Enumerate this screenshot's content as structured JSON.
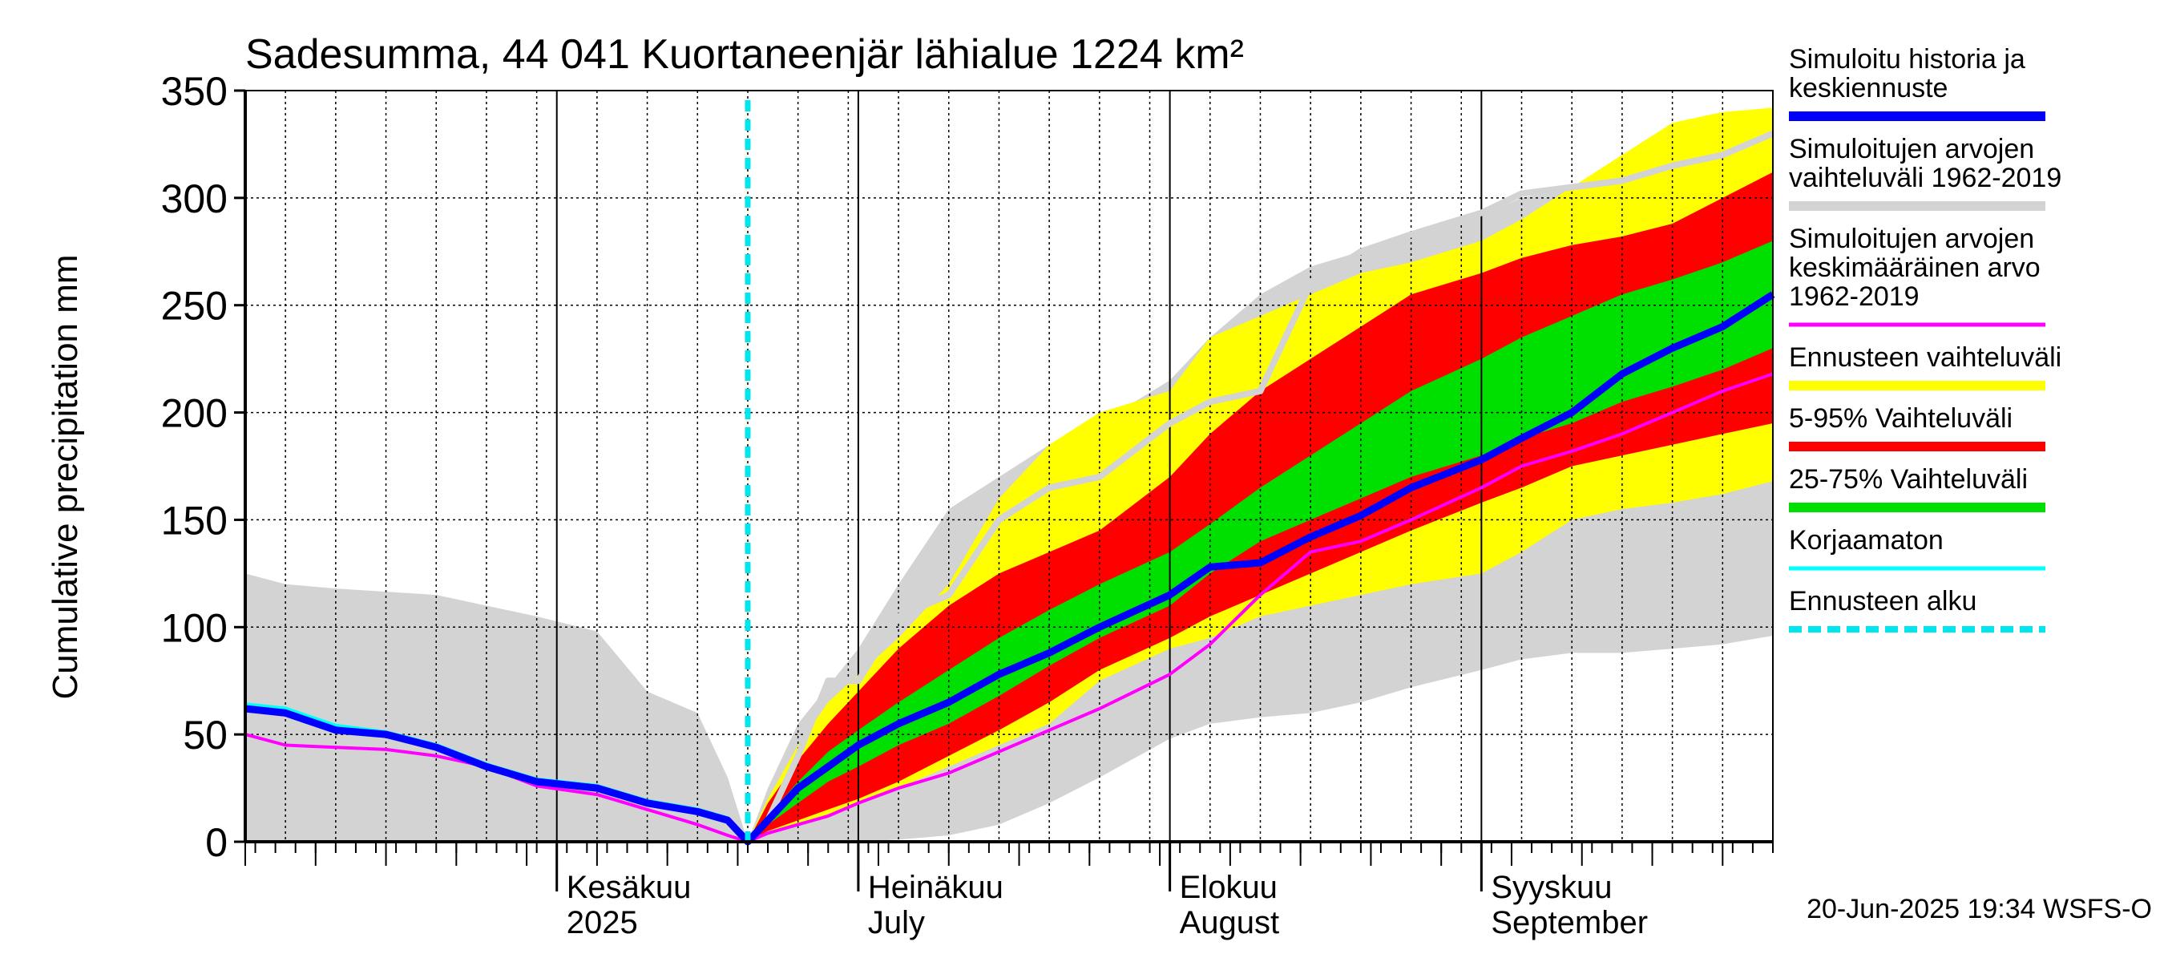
{
  "chart_data": {
    "type": "area",
    "title": "Sadesumma, 44 041 Kuortaneenjär lähialue 1224 km²",
    "ylabel": "Cumulative precipitation   mm",
    "xlabel": "",
    "ylim": [
      0,
      350
    ],
    "yticks": [
      0,
      50,
      100,
      150,
      200,
      250,
      300,
      350
    ],
    "xlim": [
      "2025-05-01",
      "2025-09-30"
    ],
    "forecast_start": "2025-06-20",
    "grid": true,
    "legend_position": "right",
    "footer": "20-Jun-2025 19:34 WSFS-O",
    "month_labels": [
      {
        "date": "2025-06-01",
        "line1": "Kesäkuu",
        "line2": "2025"
      },
      {
        "date": "2025-07-01",
        "line1": "Heinäkuu",
        "line2": "July"
      },
      {
        "date": "2025-08-01",
        "line1": "Elokuu",
        "line2": "August"
      },
      {
        "date": "2025-09-01",
        "line1": "Syyskuu",
        "line2": "September"
      }
    ],
    "colors": {
      "gray_band": "#d3d3d3",
      "yellow_band": "#ffff00",
      "red_band": "#ff0000",
      "green_band": "#00e000",
      "blue_line": "#0000ff",
      "gray_line": "#d3d3d3",
      "magenta_line": "#ff00ff",
      "cyan_line": "#00ffff",
      "forecast_start_line": "#00e5ee"
    },
    "legend": [
      {
        "label": "Simuloitu historia ja keskiennuste",
        "lines": [
          "Simuloitu historia ja",
          "keskiennuste"
        ],
        "color": "#0000ff",
        "style": "solid-thick"
      },
      {
        "label": "Simuloitujen arvojen vaihteluväli 1962-2019",
        "lines": [
          "Simuloitujen arvojen",
          "vaihteluväli 1962-2019"
        ],
        "color": "#d3d3d3",
        "style": "solid-thick"
      },
      {
        "label": "Simuloitujen arvojen keskimääräinen arvo 1962-2019",
        "lines": [
          "Simuloitujen arvojen",
          "keskimääräinen arvo",
          "   1962-2019"
        ],
        "color": "#ff00ff",
        "style": "solid"
      },
      {
        "label": "Ennusteen vaihteluväli",
        "lines": [
          "Ennusteen vaihteluväli"
        ],
        "color": "#ffff00",
        "style": "solid-thick"
      },
      {
        "label": "5-95% Vaihteluväli",
        "lines": [
          "5-95% Vaihteluväli"
        ],
        "color": "#ff0000",
        "style": "solid-thick"
      },
      {
        "label": "25-75% Vaihteluväli",
        "lines": [
          "25-75% Vaihteluväli"
        ],
        "color": "#00e000",
        "style": "solid-thick"
      },
      {
        "label": "Korjaamaton",
        "lines": [
          "Korjaamaton"
        ],
        "color": "#00ffff",
        "style": "solid"
      },
      {
        "label": "Ennusteen alku",
        "lines": [
          "Ennusteen alku"
        ],
        "color": "#00e5ee",
        "style": "dashed"
      }
    ],
    "series": [
      {
        "key": "gray_band",
        "type": "band",
        "x": [
          "2025-05-01",
          "2025-05-05",
          "2025-05-10",
          "2025-05-20",
          "2025-05-30",
          "2025-06-05",
          "2025-06-10",
          "2025-06-15",
          "2025-06-18",
          "2025-06-20",
          "2025-06-22",
          "2025-06-25",
          "2025-07-01",
          "2025-07-05",
          "2025-07-10",
          "2025-07-15",
          "2025-07-20",
          "2025-07-25",
          "2025-08-01",
          "2025-08-05",
          "2025-08-10",
          "2025-08-15",
          "2025-08-20",
          "2025-08-25",
          "2025-09-01",
          "2025-09-05",
          "2025-09-10",
          "2025-09-15",
          "2025-09-20",
          "2025-09-25",
          "2025-09-30"
        ],
        "lower": [
          0,
          0,
          0,
          0,
          0,
          0,
          0,
          0,
          0,
          0,
          0,
          0,
          0,
          1,
          3,
          8,
          18,
          30,
          48,
          55,
          58,
          60,
          65,
          72,
          80,
          85,
          88,
          88,
          90,
          92,
          96
        ],
        "upper": [
          125,
          120,
          118,
          115,
          105,
          98,
          70,
          60,
          30,
          0,
          25,
          55,
          90,
          120,
          155,
          170,
          185,
          195,
          215,
          235,
          255,
          268,
          275,
          282,
          292,
          300,
          305,
          310,
          315,
          318,
          326
        ]
      },
      {
        "key": "yellow_band",
        "type": "band",
        "x": [
          "2025-06-20",
          "2025-06-22",
          "2025-06-25",
          "2025-06-28",
          "2025-07-01",
          "2025-07-05",
          "2025-07-10",
          "2025-07-15",
          "2025-07-20",
          "2025-07-25",
          "2025-08-01",
          "2025-08-05",
          "2025-08-10",
          "2025-08-15",
          "2025-08-20",
          "2025-08-25",
          "2025-09-01",
          "2025-09-05",
          "2025-09-10",
          "2025-09-15",
          "2025-09-20",
          "2025-09-25",
          "2025-09-30"
        ],
        "lower": [
          0,
          5,
          8,
          12,
          18,
          25,
          35,
          45,
          55,
          75,
          90,
          95,
          105,
          110,
          115,
          120,
          125,
          135,
          150,
          155,
          158,
          162,
          168
        ],
        "upper": [
          0,
          20,
          45,
          65,
          78,
          95,
          120,
          160,
          185,
          200,
          210,
          235,
          245,
          255,
          265,
          270,
          280,
          290,
          305,
          320,
          335,
          340,
          342
        ]
      },
      {
        "key": "red_band",
        "type": "band",
        "x": [
          "2025-06-20",
          "2025-06-22",
          "2025-06-25",
          "2025-06-28",
          "2025-07-01",
          "2025-07-05",
          "2025-07-10",
          "2025-07-15",
          "2025-07-20",
          "2025-07-25",
          "2025-08-01",
          "2025-08-05",
          "2025-08-10",
          "2025-08-15",
          "2025-08-20",
          "2025-08-25",
          "2025-09-01",
          "2025-09-05",
          "2025-09-10",
          "2025-09-15",
          "2025-09-20",
          "2025-09-25",
          "2025-09-30"
        ],
        "lower": [
          0,
          5,
          10,
          15,
          20,
          28,
          40,
          52,
          65,
          80,
          95,
          105,
          115,
          125,
          135,
          145,
          158,
          165,
          175,
          180,
          185,
          190,
          195
        ],
        "upper": [
          0,
          18,
          38,
          55,
          70,
          90,
          110,
          125,
          135,
          145,
          170,
          190,
          210,
          225,
          240,
          255,
          265,
          272,
          278,
          282,
          288,
          300,
          312
        ]
      },
      {
        "key": "green_band",
        "type": "band",
        "x": [
          "2025-06-20",
          "2025-06-22",
          "2025-06-25",
          "2025-06-28",
          "2025-07-01",
          "2025-07-05",
          "2025-07-10",
          "2025-07-15",
          "2025-07-20",
          "2025-07-25",
          "2025-08-01",
          "2025-08-05",
          "2025-08-10",
          "2025-08-15",
          "2025-08-20",
          "2025-08-25",
          "2025-09-01",
          "2025-09-05",
          "2025-09-10",
          "2025-09-15",
          "2025-09-20",
          "2025-09-25",
          "2025-09-30"
        ],
        "lower": [
          0,
          8,
          18,
          28,
          35,
          45,
          55,
          68,
          82,
          95,
          110,
          125,
          140,
          150,
          160,
          170,
          180,
          188,
          195,
          205,
          212,
          220,
          230
        ],
        "upper": [
          0,
          12,
          28,
          42,
          52,
          65,
          80,
          95,
          108,
          120,
          135,
          148,
          165,
          180,
          195,
          210,
          225,
          235,
          245,
          255,
          262,
          270,
          280
        ]
      },
      {
        "key": "gray_line",
        "type": "line",
        "x": [
          "2025-06-20",
          "2025-06-22",
          "2025-06-25",
          "2025-06-28",
          "2025-07-01",
          "2025-07-05",
          "2025-07-10",
          "2025-07-15",
          "2025-07-20",
          "2025-07-25",
          "2025-08-01",
          "2025-08-05",
          "2025-08-10",
          "2025-08-15",
          "2025-08-20",
          "2025-08-25",
          "2025-09-01",
          "2025-09-05",
          "2025-09-10",
          "2025-09-15",
          "2025-09-20",
          "2025-09-25",
          "2025-09-30"
        ],
        "values": [
          0,
          10,
          40,
          75,
          75,
          105,
          115,
          150,
          165,
          170,
          195,
          205,
          210,
          260,
          275,
          283,
          293,
          302,
          305,
          308,
          315,
          320,
          330
        ]
      },
      {
        "key": "blue_line",
        "type": "line",
        "x": [
          "2025-05-01",
          "2025-05-05",
          "2025-05-10",
          "2025-05-15",
          "2025-05-20",
          "2025-05-25",
          "2025-05-30",
          "2025-06-05",
          "2025-06-10",
          "2025-06-15",
          "2025-06-18",
          "2025-06-20",
          "2025-06-22",
          "2025-06-25",
          "2025-06-28",
          "2025-07-01",
          "2025-07-05",
          "2025-07-10",
          "2025-07-15",
          "2025-07-20",
          "2025-07-25",
          "2025-08-01",
          "2025-08-05",
          "2025-08-10",
          "2025-08-15",
          "2025-08-20",
          "2025-08-25",
          "2025-09-01",
          "2025-09-05",
          "2025-09-10",
          "2025-09-15",
          "2025-09-20",
          "2025-09-25",
          "2025-09-30"
        ],
        "values": [
          62,
          60,
          52,
          50,
          44,
          35,
          28,
          25,
          18,
          14,
          10,
          0,
          10,
          25,
          35,
          45,
          55,
          65,
          78,
          88,
          100,
          115,
          128,
          130,
          142,
          152,
          165,
          178,
          188,
          200,
          218,
          230,
          240,
          255
        ]
      },
      {
        "key": "magenta_line",
        "type": "line",
        "x": [
          "2025-05-01",
          "2025-05-05",
          "2025-05-10",
          "2025-05-15",
          "2025-05-20",
          "2025-05-25",
          "2025-05-30",
          "2025-06-05",
          "2025-06-10",
          "2025-06-15",
          "2025-06-18",
          "2025-06-20",
          "2025-06-22",
          "2025-06-25",
          "2025-06-28",
          "2025-07-01",
          "2025-07-05",
          "2025-07-10",
          "2025-07-15",
          "2025-07-20",
          "2025-07-25",
          "2025-08-01",
          "2025-08-05",
          "2025-08-10",
          "2025-08-15",
          "2025-08-20",
          "2025-08-25",
          "2025-09-01",
          "2025-09-05",
          "2025-09-10",
          "2025-09-15",
          "2025-09-20",
          "2025-09-25",
          "2025-09-30"
        ],
        "values": [
          50,
          45,
          44,
          43,
          40,
          35,
          26,
          22,
          15,
          8,
          3,
          0,
          4,
          8,
          12,
          18,
          25,
          32,
          42,
          52,
          62,
          78,
          92,
          115,
          135,
          140,
          150,
          165,
          175,
          182,
          190,
          200,
          210,
          218
        ]
      },
      {
        "key": "cyan_line",
        "type": "line",
        "x": [
          "2025-05-01",
          "2025-05-05",
          "2025-05-10",
          "2025-05-15",
          "2025-05-20",
          "2025-05-25",
          "2025-05-30",
          "2025-06-05",
          "2025-06-10",
          "2025-06-15",
          "2025-06-18",
          "2025-06-20"
        ],
        "values": [
          64,
          62,
          54,
          51,
          45,
          36,
          29,
          26,
          19,
          15,
          11,
          0
        ]
      }
    ]
  }
}
